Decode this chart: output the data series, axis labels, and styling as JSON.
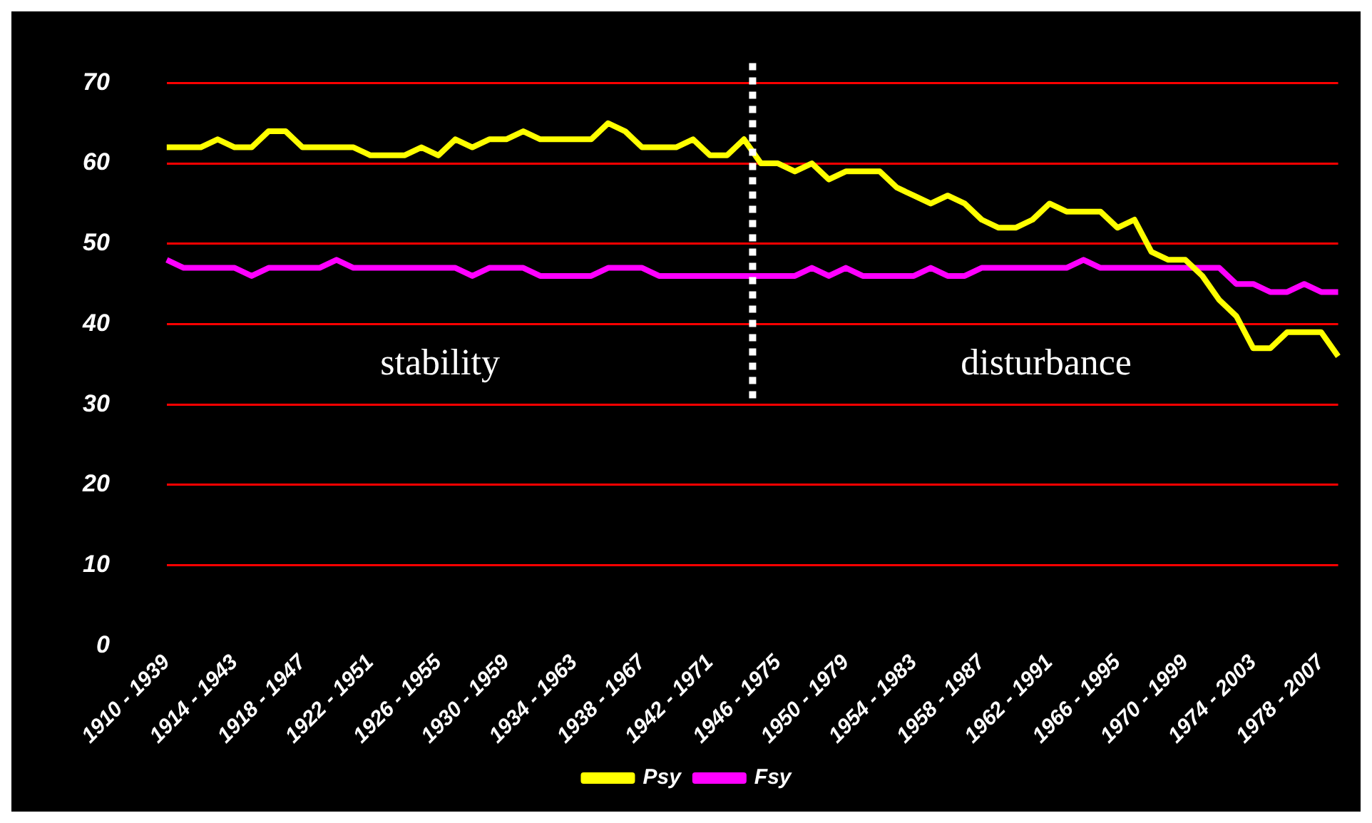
{
  "chart_data": {
    "type": "line",
    "categories": [
      "1910 - 1939",
      null,
      null,
      null,
      "1914 - 1943",
      null,
      null,
      null,
      "1918 - 1947",
      null,
      null,
      null,
      "1922 - 1951",
      null,
      null,
      null,
      "1926 - 1955",
      null,
      null,
      null,
      "1930 - 1959",
      null,
      null,
      null,
      "1934 - 1963",
      null,
      null,
      null,
      "1938 - 1967",
      null,
      null,
      null,
      "1942 - 1971",
      null,
      null,
      null,
      "1946 - 1975",
      null,
      null,
      null,
      "1950 - 1979",
      null,
      null,
      null,
      "1954 - 1983",
      null,
      null,
      null,
      "1958 - 1987",
      null,
      null,
      null,
      "1962 - 1991",
      null,
      null,
      null,
      "1966 - 1995",
      null,
      null,
      null,
      "1970 - 1999",
      null,
      null,
      null,
      "1974 - 2003",
      null,
      null,
      null,
      "1978 - 2007",
      null
    ],
    "series": [
      {
        "name": "Psy",
        "color": "#ffff00",
        "values": [
          62,
          62,
          62,
          63,
          62,
          62,
          64,
          64,
          62,
          62,
          62,
          62,
          61,
          61,
          61,
          62,
          61,
          63,
          62,
          63,
          63,
          64,
          63,
          63,
          63,
          63,
          65,
          64,
          62,
          62,
          62,
          63,
          61,
          61,
          63,
          60,
          60,
          59,
          60,
          58,
          59,
          59,
          59,
          57,
          56,
          55,
          56,
          55,
          53,
          52,
          52,
          53,
          55,
          54,
          54,
          54,
          52,
          53,
          49,
          48,
          48,
          46,
          43,
          41,
          37,
          37,
          39,
          39,
          39,
          36
        ]
      },
      {
        "name": "Fsy",
        "color": "#ff00ff",
        "values": [
          48,
          47,
          47,
          47,
          47,
          46,
          47,
          47,
          47,
          47,
          48,
          47,
          47,
          47,
          47,
          47,
          47,
          47,
          46,
          47,
          47,
          47,
          46,
          46,
          46,
          46,
          47,
          47,
          47,
          46,
          46,
          46,
          46,
          46,
          46,
          46,
          46,
          46,
          47,
          46,
          47,
          46,
          46,
          46,
          46,
          47,
          46,
          46,
          47,
          47,
          47,
          47,
          47,
          47,
          48,
          47,
          47,
          47,
          47,
          47,
          47,
          47,
          47,
          45,
          45,
          44,
          44,
          45,
          44,
          44
        ]
      }
    ],
    "ylim": [
      0,
      70
    ],
    "yticks": [
      0,
      10,
      20,
      30,
      40,
      50,
      60,
      70
    ],
    "grid": "y",
    "legend": "bottom",
    "marker": "none",
    "line_style": "solid",
    "annotations": [
      "stability",
      "disturbance"
    ]
  }
}
